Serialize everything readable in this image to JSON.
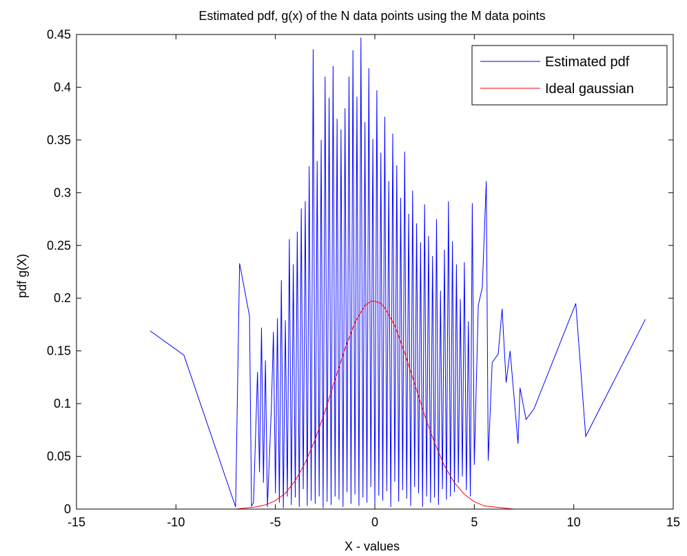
{
  "chart_data": {
    "type": "line",
    "title": "Estimated pdf, g(x) of the N data points using the M data points",
    "xlabel": "X - values",
    "ylabel": "pdf g(X)",
    "xlim": [
      -15,
      15
    ],
    "ylim": [
      0,
      0.45
    ],
    "xticks": [
      -15,
      -10,
      -5,
      0,
      5,
      10,
      15
    ],
    "xtick_labels": [
      "-15",
      "-10",
      "-5",
      "0",
      "5",
      "10",
      "15"
    ],
    "yticks": [
      0,
      0.05,
      0.1,
      0.15,
      0.2,
      0.25,
      0.3,
      0.35,
      0.4,
      0.45
    ],
    "ytick_labels": [
      "0",
      "0.05",
      "0.1",
      "0.15",
      "0.2",
      "0.25",
      "0.3",
      "0.35",
      "0.4",
      "0.45"
    ],
    "grid": false,
    "legend_position": "top-right",
    "series": [
      {
        "name": "Estimated pdf",
        "color": "#0000ff",
        "x": [
          -11.3,
          -9.6,
          -7.0,
          -6.8,
          -6.3,
          -6.2,
          -6.1,
          -5.9,
          -5.8,
          -5.7,
          -5.6,
          -5.5,
          -5.4,
          -5.2,
          -5.1,
          -5.0,
          -4.9,
          -4.8,
          -4.7,
          -4.6,
          -4.5,
          -4.4,
          -4.3,
          -4.2,
          -4.1,
          -4.0,
          -3.9,
          -3.8,
          -3.7,
          -3.6,
          -3.5,
          -3.4,
          -3.3,
          -3.2,
          -3.1,
          -3.0,
          -2.9,
          -2.8,
          -2.7,
          -2.6,
          -2.5,
          -2.4,
          -2.3,
          -2.2,
          -2.1,
          -2.0,
          -1.9,
          -1.8,
          -1.7,
          -1.6,
          -1.5,
          -1.4,
          -1.3,
          -1.2,
          -1.1,
          -1.0,
          -0.9,
          -0.8,
          -0.7,
          -0.6,
          -0.5,
          -0.4,
          -0.3,
          -0.2,
          -0.1,
          0.0,
          0.1,
          0.2,
          0.3,
          0.4,
          0.5,
          0.6,
          0.7,
          0.8,
          0.9,
          1.0,
          1.1,
          1.2,
          1.3,
          1.4,
          1.5,
          1.6,
          1.7,
          1.8,
          1.9,
          2.0,
          2.1,
          2.2,
          2.3,
          2.4,
          2.5,
          2.6,
          2.7,
          2.8,
          2.9,
          3.0,
          3.1,
          3.2,
          3.3,
          3.4,
          3.5,
          3.6,
          3.7,
          3.8,
          3.9,
          4.0,
          4.1,
          4.2,
          4.3,
          4.4,
          4.5,
          4.6,
          4.7,
          4.8,
          4.9,
          5.0,
          5.2,
          5.4,
          5.6,
          5.7,
          5.9,
          6.2,
          6.4,
          6.6,
          6.8,
          7.2,
          7.3,
          7.6,
          8.0,
          10.1,
          10.6,
          13.6
        ],
        "y": [
          0.169,
          0.146,
          0.002,
          0.233,
          0.183,
          0.003,
          0.006,
          0.13,
          0.035,
          0.172,
          0.025,
          0.141,
          0.002,
          0.097,
          0.168,
          0.015,
          0.181,
          0.006,
          0.217,
          0.001,
          0.179,
          0.012,
          0.256,
          0.004,
          0.232,
          0.011,
          0.263,
          0.002,
          0.285,
          0.019,
          0.292,
          0.003,
          0.325,
          0.008,
          0.436,
          0.005,
          0.33,
          0.012,
          0.35,
          0.001,
          0.41,
          0.007,
          0.39,
          0.004,
          0.42,
          0.012,
          0.37,
          0.009,
          0.36,
          0.002,
          0.38,
          0.016,
          0.41,
          0.005,
          0.435,
          0.014,
          0.391,
          0.003,
          0.447,
          0.011,
          0.367,
          0.006,
          0.418,
          0.021,
          0.351,
          0.004,
          0.397,
          0.013,
          0.338,
          0.008,
          0.372,
          0.017,
          0.311,
          0.002,
          0.356,
          0.026,
          0.326,
          0.007,
          0.295,
          0.018,
          0.339,
          0.01,
          0.28,
          0.003,
          0.302,
          0.021,
          0.271,
          0.015,
          0.253,
          0.002,
          0.289,
          0.012,
          0.259,
          0.006,
          0.24,
          0.011,
          0.275,
          0.004,
          0.207,
          0.019,
          0.246,
          0.009,
          0.292,
          0.012,
          0.254,
          0.016,
          0.232,
          0.025,
          0.199,
          0.031,
          0.234,
          0.018,
          0.178,
          0.012,
          0.29,
          0.042,
          0.193,
          0.21,
          0.311,
          0.046,
          0.139,
          0.147,
          0.19,
          0.12,
          0.15,
          0.062,
          0.115,
          0.085,
          0.095,
          0.195,
          0.069,
          0.18
        ]
      },
      {
        "name": "Ideal gaussian",
        "color": "#ff0000",
        "x": [
          -11.3,
          -9.0,
          -8.0,
          -7.0,
          -6.5,
          -6.0,
          -5.5,
          -5.0,
          -4.5,
          -4.0,
          -3.5,
          -3.0,
          -2.5,
          -2.0,
          -1.5,
          -1.0,
          -0.5,
          -0.2,
          0.0,
          0.3,
          0.5,
          1.0,
          1.5,
          2.0,
          2.5,
          3.0,
          3.5,
          4.0,
          4.5,
          5.0,
          5.5,
          6.0,
          6.5,
          7.0,
          8.0,
          9.0,
          13.6
        ],
        "y": [
          0.0,
          0.0,
          0.0,
          0.0,
          0.001,
          0.002,
          0.004,
          0.008,
          0.015,
          0.027,
          0.044,
          0.066,
          0.093,
          0.123,
          0.152,
          0.177,
          0.193,
          0.197,
          0.197,
          0.195,
          0.191,
          0.174,
          0.148,
          0.119,
          0.089,
          0.063,
          0.041,
          0.025,
          0.014,
          0.007,
          0.003,
          0.002,
          0.001,
          0.0,
          0.0,
          0.0,
          0.0
        ]
      }
    ]
  }
}
